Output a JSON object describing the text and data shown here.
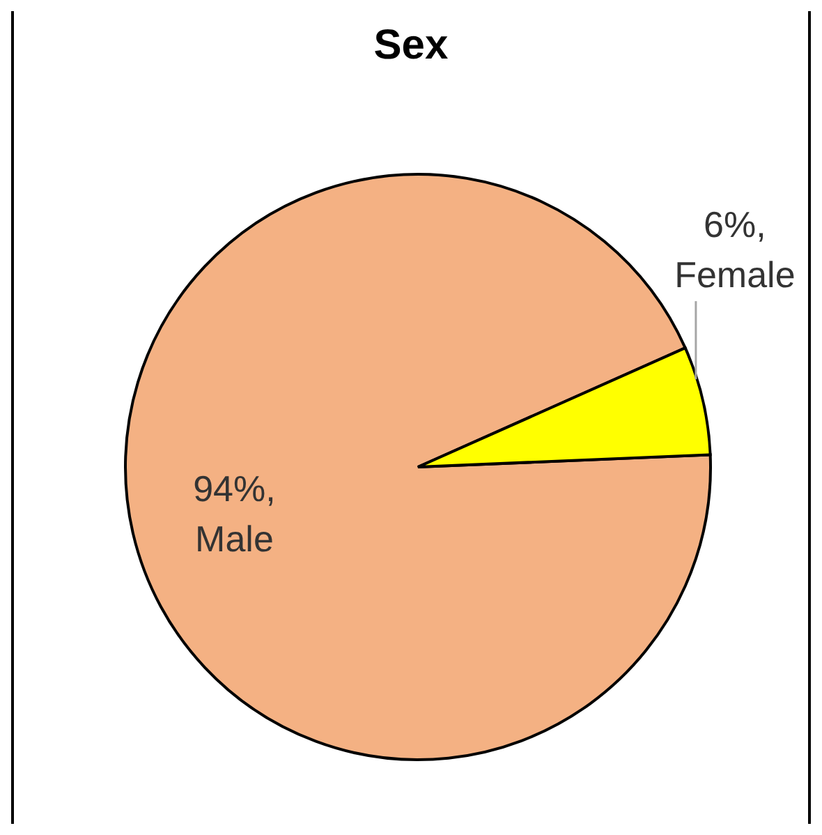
{
  "chart_data": {
    "type": "pie",
    "title": "Sex",
    "categories": [
      "Male",
      "Female"
    ],
    "values": [
      94,
      6
    ],
    "value_labels": [
      "94%,",
      "6%,"
    ],
    "colors": [
      "#f4b183",
      "#ffff00"
    ]
  }
}
